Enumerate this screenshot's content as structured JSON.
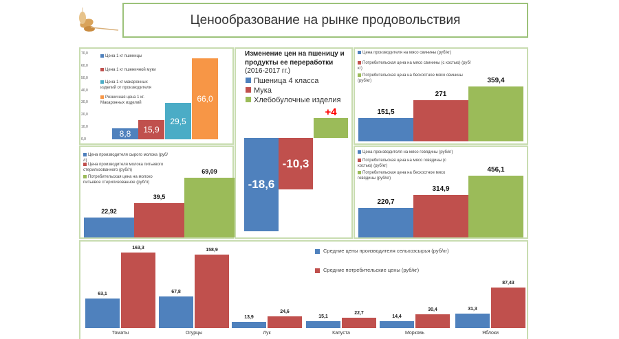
{
  "title": "Ценообразование на рынке продовольствия",
  "colors": {
    "blue": "#4f81bd",
    "red": "#c0504d",
    "green": "#9bbb59",
    "teal": "#4bacc6",
    "orange": "#f79646",
    "pos_label": "#ff0000"
  },
  "chart_data": [
    {
      "id": "pasta",
      "type": "bar",
      "title": "",
      "ylim": [
        0,
        70
      ],
      "yticks": [
        "0,0",
        "10,0",
        "20,0",
        "30,0",
        "40,0",
        "50,0",
        "60,0",
        "70,0"
      ],
      "series": [
        {
          "name": "Цена 1 кг пшеницы",
          "value": 8.8,
          "label": "8,8",
          "color": "#4f81bd"
        },
        {
          "name": "Цена 1 кг пшеничной муки",
          "value": 15.9,
          "label": "15,9",
          "color": "#c0504d"
        },
        {
          "name": "Цена 1 кг макаронных изделий от производителя",
          "value": 29.5,
          "label": "29,5",
          "color": "#4bacc6"
        },
        {
          "name": "Розничная цена 1 кг. Макаронных изделий",
          "value": 66.0,
          "label": "66,0",
          "color": "#f79646"
        }
      ]
    },
    {
      "id": "wheat",
      "type": "bar",
      "title": "Изменение цен на пшеницу и продукты ее переработки",
      "subtitle": "(2016-2017 гг.)",
      "series": [
        {
          "name": "Пшеница 4 класса",
          "value": -18.6,
          "label": "-18,6",
          "color": "#4f81bd"
        },
        {
          "name": "Мука",
          "value": -10.3,
          "label": "-10,3",
          "color": "#c0504d"
        },
        {
          "name": "Хлебобулочные изделия",
          "value": 4,
          "label": "+4",
          "color": "#9bbb59"
        }
      ]
    },
    {
      "id": "pork",
      "type": "bar",
      "title": "",
      "series": [
        {
          "name": "Цена производителя на мясо свинины (руб/кг)",
          "value": 151.5,
          "label": "151,5",
          "color": "#4f81bd"
        },
        {
          "name": "Потребительская цена на мясо свинины (с костью) (руб/кг)",
          "value": 271,
          "label": "271",
          "color": "#c0504d"
        },
        {
          "name": "Потребительская цена на бескостное мясо свинины (руб/кг)",
          "value": 359.4,
          "label": "359,4",
          "color": "#9bbb59"
        }
      ]
    },
    {
      "id": "milk",
      "type": "bar",
      "title": "",
      "series": [
        {
          "name": "Цена производителя сырого молока (руб/л)",
          "value": 22.92,
          "label": "22,92",
          "color": "#4f81bd"
        },
        {
          "name": "Цена производителя молока питьевого стерилизованного (руб/л)",
          "value": 39.5,
          "label": "39,5",
          "color": "#c0504d"
        },
        {
          "name": "Потребительская цена на молоко питьевое стерилизованное (руб/л)",
          "value": 69.09,
          "label": "69,09",
          "color": "#9bbb59"
        }
      ]
    },
    {
      "id": "beef",
      "type": "bar",
      "title": "",
      "series": [
        {
          "name": "Цена производителя на мясо говядины (руб/кг)",
          "value": 220.7,
          "label": "220,7",
          "color": "#4f81bd"
        },
        {
          "name": "Потребительская цена на мясо говядины (с костью) (руб/кг)",
          "value": 314.9,
          "label": "314,9",
          "color": "#c0504d"
        },
        {
          "name": "Потребительская цена на бескостное мясо говядины (руб/кг)",
          "value": 456.1,
          "label": "456,1",
          "color": "#9bbb59"
        }
      ]
    },
    {
      "id": "vegetables",
      "type": "bar",
      "title": "",
      "categories": [
        "Томаты",
        "Огурцы",
        "Лук",
        "Капуста",
        "Морковь",
        "Яблоки"
      ],
      "series": [
        {
          "name": "Средние цены производителя сельхозсырья (руб/кг)",
          "color": "#4f81bd",
          "values": [
            63.1,
            67.8,
            13.9,
            15.1,
            14.4,
            31.3
          ],
          "labels": [
            "63,1",
            "67,8",
            "13,9",
            "15,1",
            "14,4",
            "31,3"
          ]
        },
        {
          "name": "Средние потребительские цены (руб/кг)",
          "color": "#c0504d",
          "values": [
            163.3,
            158.9,
            24.6,
            22.7,
            30.4,
            87.43
          ],
          "labels": [
            "163,3",
            "158,9",
            "24,6",
            "22,7",
            "30,4",
            "87,43"
          ]
        }
      ]
    }
  ]
}
